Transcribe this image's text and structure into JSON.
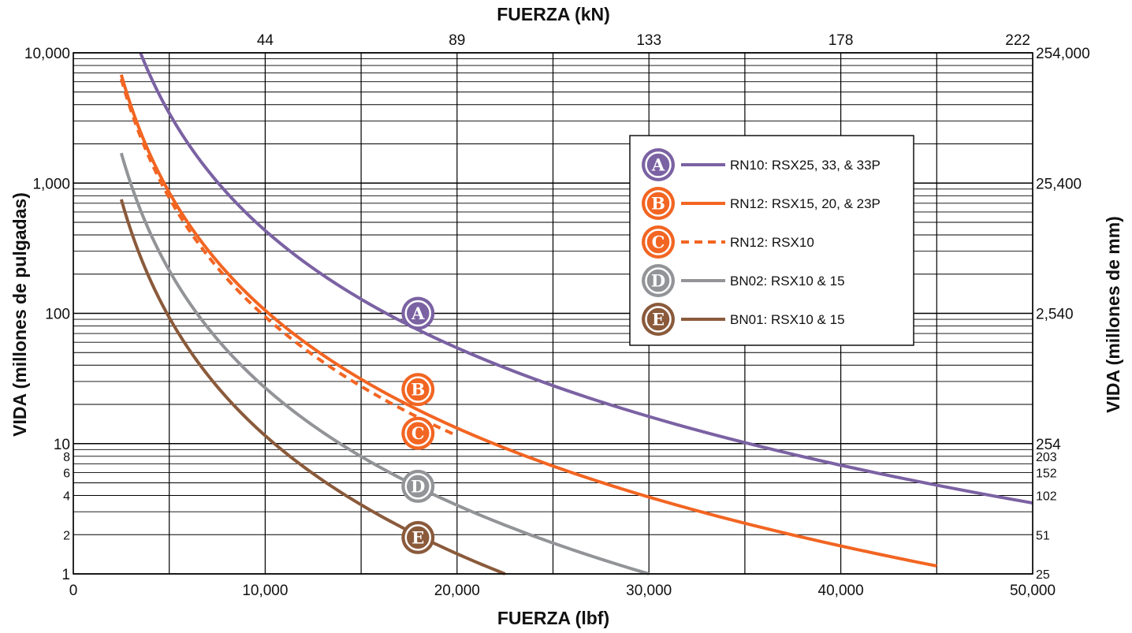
{
  "chart_data": {
    "type": "line",
    "x_axis_bottom": {
      "label": "FUERZA (lbf)",
      "range": [
        0,
        50000
      ],
      "ticks": [
        0,
        10000,
        20000,
        30000,
        40000,
        50000
      ],
      "tick_labels": [
        "0",
        "10,000",
        "20,000",
        "30,000",
        "40,000",
        "50,000"
      ]
    },
    "x_axis_top": {
      "label": "FUERZA (kN)",
      "ticks_lbf": [
        10000,
        20000,
        30000,
        40000,
        50000
      ],
      "tick_labels": [
        "44",
        "89",
        "133",
        "178",
        "222"
      ]
    },
    "y_axis_left": {
      "label": "VIDA (millones de pulgadas)",
      "scale": "log",
      "range": [
        1,
        10000
      ],
      "major_ticks": [
        1,
        10,
        100,
        1000,
        10000
      ],
      "major_labels": [
        "1",
        "10",
        "100",
        "1,000",
        "10,000"
      ],
      "minor_labels": [
        {
          "value": 2,
          "label": "2"
        },
        {
          "value": 4,
          "label": "4"
        },
        {
          "value": 6,
          "label": "6"
        },
        {
          "value": 8,
          "label": "8"
        }
      ]
    },
    "y_axis_right": {
      "label": "VIDA (millones de mm)",
      "labels": [
        {
          "value": 1,
          "label": "25"
        },
        {
          "value": 2,
          "label": "51"
        },
        {
          "value": 4,
          "label": "102"
        },
        {
          "value": 6,
          "label": "152"
        },
        {
          "value": 8,
          "label": "203"
        },
        {
          "value": 10,
          "label": "254"
        },
        {
          "value": 100,
          "label": "2,540"
        },
        {
          "value": 1000,
          "label": "25,400"
        },
        {
          "value": 10000,
          "label": "254,000"
        }
      ]
    },
    "grid": true,
    "legend_position": "top-right",
    "series": [
      {
        "badge": "A",
        "name": "RN10: RSX25, 33, & 33P",
        "color": "#7b62a3",
        "dash": false,
        "start": [
          3500,
          10000
        ],
        "end": [
          50000,
          3.5
        ],
        "label_at": [
          17800,
          100
        ]
      },
      {
        "badge": "B",
        "name": "RN12: RSX15, 20, & 23P",
        "color": "#f26522",
        "dash": false,
        "start": [
          2500,
          6800
        ],
        "end": [
          45000,
          1.15
        ],
        "label_at": [
          17800,
          26
        ]
      },
      {
        "badge": "C",
        "name": "RN12: RSX10",
        "color": "#f26522",
        "dash": true,
        "start": [
          2500,
          6300
        ],
        "end": [
          20000,
          11.5
        ],
        "label_at": [
          17800,
          12
        ]
      },
      {
        "badge": "D",
        "name": "BN02: RSX10 & 15",
        "color": "#929497",
        "dash": false,
        "start": [
          2500,
          1700
        ],
        "end": [
          30000,
          1.0
        ],
        "label_at": [
          17800,
          4.7
        ]
      },
      {
        "badge": "E",
        "name": "BN01: RSX10 & 15",
        "color": "#8a5a3b",
        "dash": false,
        "start": [
          2500,
          750
        ],
        "end": [
          22500,
          1.0
        ],
        "label_at": [
          17800,
          1.9
        ]
      }
    ]
  }
}
